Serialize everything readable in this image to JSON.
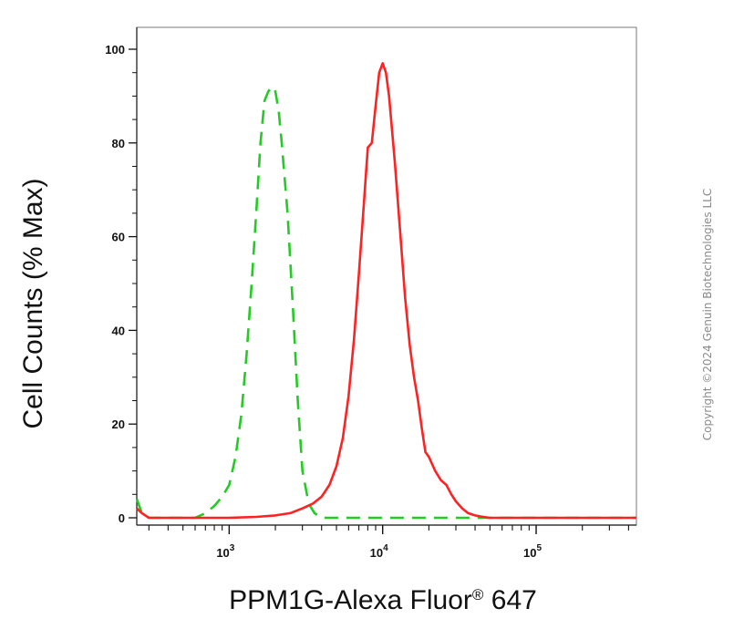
{
  "chart_data": {
    "type": "line",
    "title": "",
    "xlabel": "PPM1G-Alexa Fluor",
    "xlabel_superscript": "®",
    "xlabel_suffix": " 647",
    "ylabel": "Cell Counts (% Max)",
    "x_scale": "log",
    "xlim": [
      250,
      450000
    ],
    "ylim": [
      0,
      100
    ],
    "x_ticks": [
      {
        "base": "10",
        "exp": "3",
        "value": 1000
      },
      {
        "base": "10",
        "exp": "4",
        "value": 10000
      },
      {
        "base": "10",
        "exp": "5",
        "value": 100000
      }
    ],
    "y_ticks": [
      "0",
      "20",
      "40",
      "60",
      "80",
      "100"
    ],
    "grid": false,
    "legend": "none",
    "series": [
      {
        "color": "#22cc22",
        "style": "dashed",
        "x": [
          250,
          270,
          300,
          400,
          500,
          600,
          700,
          800,
          900,
          1000,
          1100,
          1200,
          1300,
          1400,
          1500,
          1600,
          1700,
          1800,
          1900,
          2000,
          2100,
          2200,
          2400,
          2600,
          2800,
          3000,
          3300,
          3600,
          4000,
          5000,
          10000,
          20000,
          100000,
          450000
        ],
        "y": [
          4,
          1,
          0,
          0,
          0,
          0,
          1,
          2.5,
          4.5,
          7,
          13,
          22,
          35,
          50,
          65,
          80,
          89,
          91,
          92,
          91,
          87,
          80,
          65,
          45,
          25,
          10,
          3,
          1,
          0,
          0,
          0,
          0,
          0,
          0
        ]
      },
      {
        "color": "#ff2222",
        "style": "solid",
        "x": [
          250,
          270,
          300,
          400,
          1000,
          1500,
          2000,
          2500,
          3000,
          3500,
          4000,
          4500,
          5000,
          5500,
          6000,
          6500,
          7000,
          7500,
          8000,
          8500,
          9000,
          9500,
          10000,
          10500,
          11000,
          12000,
          13000,
          14000,
          15000,
          16000,
          17000,
          18000,
          19000,
          20000,
          22000,
          24000,
          26000,
          28000,
          30000,
          33000,
          36000,
          40000,
          45000,
          50000,
          60000,
          100000,
          450000
        ],
        "y": [
          2,
          1,
          0,
          0,
          0,
          0.2,
          0.5,
          1,
          2,
          3,
          4.5,
          7,
          11,
          17,
          26,
          38,
          52,
          66,
          79,
          80,
          88,
          95,
          97,
          95,
          90,
          76,
          61,
          47,
          37,
          30,
          25,
          19,
          14,
          13,
          10,
          8,
          7,
          5,
          3.5,
          2,
          1,
          0.5,
          0.2,
          0,
          0,
          0,
          0
        ]
      }
    ]
  },
  "copyright": "Copyright ©2024 Genuin Biotechnologies LLC"
}
